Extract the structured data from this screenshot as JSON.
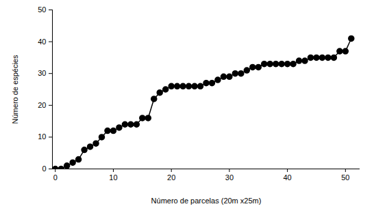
{
  "chart_data": {
    "type": "line",
    "x_label": "Número de parcelas (20m x25m)",
    "y_label": "Número de espécies",
    "x": [
      0,
      1,
      2,
      3,
      4,
      5,
      6,
      7,
      8,
      9,
      10,
      11,
      12,
      13,
      14,
      15,
      16,
      17,
      18,
      19,
      20,
      21,
      22,
      23,
      24,
      25,
      26,
      27,
      28,
      29,
      30,
      31,
      32,
      33,
      34,
      35,
      36,
      37,
      38,
      39,
      40,
      41,
      42,
      43,
      44,
      45,
      46,
      47,
      48,
      49,
      50,
      51
    ],
    "values": [
      0,
      0,
      1,
      2,
      3,
      6,
      7,
      8,
      10,
      12,
      12,
      13,
      14,
      14,
      14,
      16,
      16,
      22,
      24,
      25,
      26,
      26,
      26,
      26,
      26,
      26,
      27,
      27,
      28,
      29,
      29,
      30,
      30,
      31,
      32,
      32,
      33,
      33,
      33,
      33,
      33,
      33,
      34,
      34,
      35,
      35,
      35,
      35,
      35,
      37,
      37,
      41
    ],
    "color": "#000000",
    "marker": "circle",
    "line_style": "solid",
    "xlim": [
      -0.5,
      52.5
    ],
    "xticks": [
      0,
      10,
      20,
      30,
      40,
      50
    ],
    "ylim": [
      0,
      50
    ],
    "yticks": [
      0,
      10,
      20,
      30,
      40,
      50
    ],
    "grid": false
  }
}
